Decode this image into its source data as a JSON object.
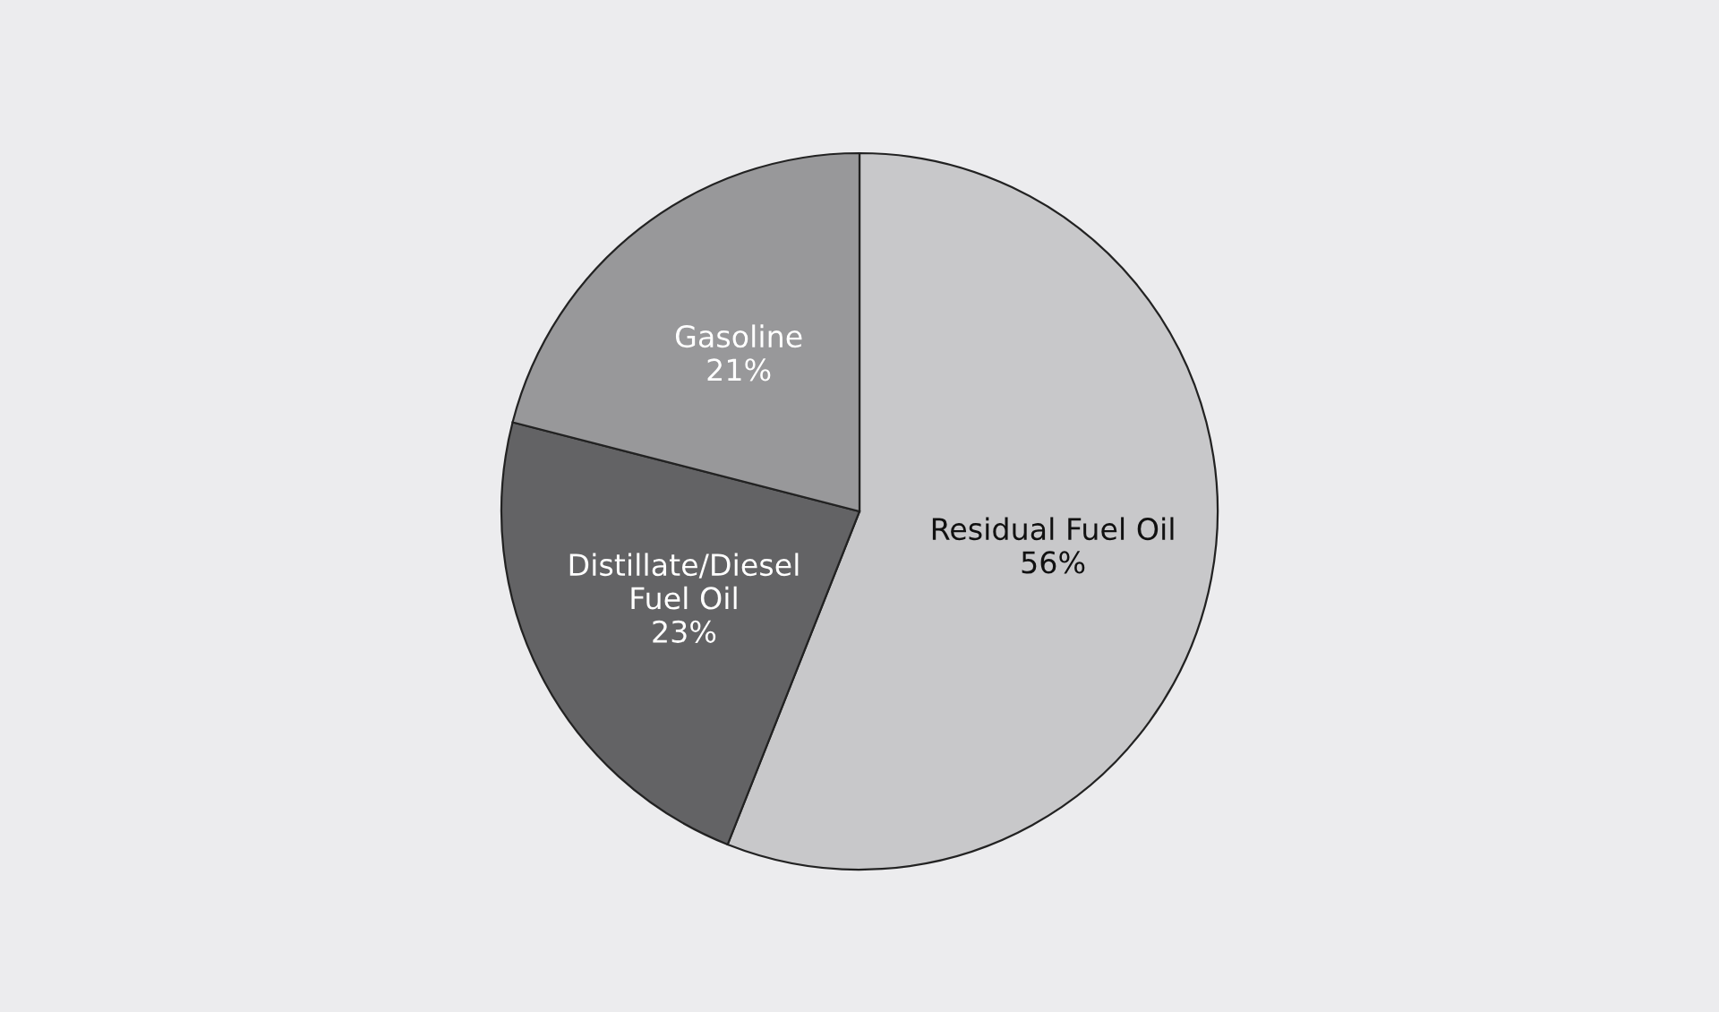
{
  "chart_data": {
    "type": "pie",
    "categories": [
      "Residual Fuel Oil",
      "Distillate/Diesel\nFuel Oil",
      "Gasoline"
    ],
    "values": [
      56,
      23,
      21
    ],
    "colors": [
      "#c8c8ca",
      "#636365",
      "#98989a"
    ],
    "value_labels": [
      "56%",
      "23%",
      "21%"
    ],
    "legend": false
  }
}
